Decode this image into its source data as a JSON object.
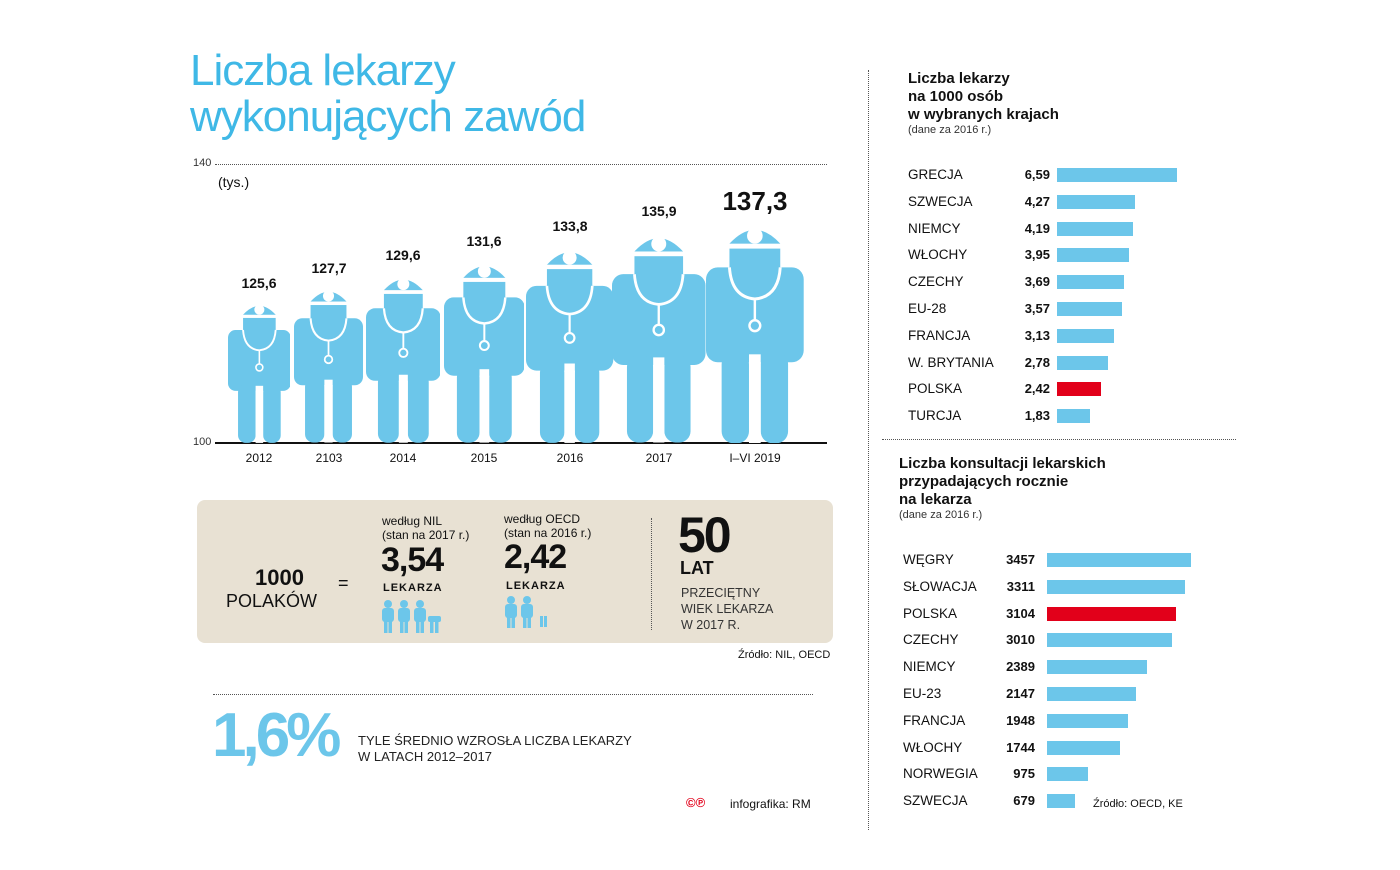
{
  "title_line1": "Liczba lekarzy",
  "title_line2": "wykonujących zawód",
  "colors": {
    "blue": "#6cc6ea",
    "red": "#e2001a",
    "beige": "#e8e1d3",
    "title": "#3fb8e6"
  },
  "chart_data": [
    {
      "type": "bar",
      "ylabel": "(tys.)",
      "ylim": [
        100,
        140
      ],
      "y_ticks": [
        "100",
        "140"
      ],
      "categories": [
        "2012",
        "2103",
        "2014",
        "2015",
        "2016",
        "2017",
        "I–VI 2019"
      ],
      "values": [
        125.6,
        127.7,
        129.6,
        131.6,
        133.8,
        135.9,
        137.3
      ],
      "value_labels": [
        "125,6",
        "127,7",
        "129,6",
        "131,6",
        "133,8",
        "135,9",
        "137,3"
      ],
      "mark": "doctor-pictogram"
    },
    {
      "type": "bar",
      "orientation": "horizontal",
      "title_lines": [
        "Liczba lekarzy",
        "na 1000 osób",
        "w wybranych krajach"
      ],
      "subtitle": "(dane za 2016 r.)",
      "categories": [
        "GRECJA",
        "SZWECJA",
        "NIEMCY",
        "WŁOCHY",
        "CZECHY",
        "EU-28",
        "FRANCJA",
        "W. BRYTANIA",
        "POLSKA",
        "TURCJA"
      ],
      "values": [
        6.59,
        4.27,
        4.19,
        3.95,
        3.69,
        3.57,
        3.13,
        2.78,
        2.42,
        1.83
      ],
      "value_labels": [
        "6,59",
        "4,27",
        "4,19",
        "3,95",
        "3,69",
        "3,57",
        "3,13",
        "2,78",
        "2,42",
        "1,83"
      ],
      "highlight": "POLSKA"
    },
    {
      "type": "bar",
      "orientation": "horizontal",
      "title_lines": [
        "Liczba konsultacji lekarskich",
        "przypadających rocznie",
        "na lekarza"
      ],
      "subtitle": "(dane za 2016 r.)",
      "categories": [
        "WĘGRY",
        "SŁOWACJA",
        "POLSKA",
        "CZECHY",
        "NIEMCY",
        "EU-23",
        "FRANCJA",
        "WŁOCHY",
        "NORWEGIA",
        "SZWECJA"
      ],
      "values": [
        3457,
        3311,
        3104,
        3010,
        2389,
        2147,
        1948,
        1744,
        975,
        679
      ],
      "value_labels": [
        "3457",
        "3311",
        "3104",
        "3010",
        "2389",
        "2147",
        "1948",
        "1744",
        "975",
        "679"
      ],
      "highlight": "POLSKA",
      "source": "Źródło: OECD, KE"
    }
  ],
  "box": {
    "ratio_num": "1000",
    "ratio_label": "POLAKÓW",
    "equals": "=",
    "nil_l1": "według NIL",
    "nil_l2": "(stan na 2017 r.)",
    "nil_value": "3,54",
    "nil_unit": "LEKARZA",
    "oecd_l1": "według OECD",
    "oecd_l2": "(stan na 2016 r.)",
    "oecd_value": "2,42",
    "oecd_unit": "LEKARZA",
    "age_value": "50",
    "age_unit": "LAT",
    "age_l1": "PRZECIĘTNY",
    "age_l2": "WIEK LEKARZA",
    "age_l3": "W 2017 R.",
    "source": "Źródło: NIL, OECD"
  },
  "growth": {
    "value": "1,6%",
    "text_l1": "TYLE ŚREDNIO WZROSŁA LICZBA LEKARZY",
    "text_l2": "W LATACH 2012–2017"
  },
  "credit": {
    "logo": "©℗",
    "text": "infografika: RM"
  }
}
